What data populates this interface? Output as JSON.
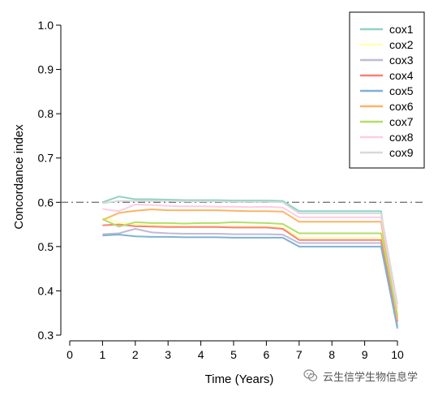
{
  "chart_data": {
    "type": "line",
    "xlabel": "Time (Years)",
    "ylabel": "Concordance index",
    "xlim": [
      0,
      10
    ],
    "ylim": [
      0.3,
      1.0
    ],
    "xticks": [
      0,
      1,
      2,
      3,
      4,
      5,
      6,
      7,
      8,
      9,
      10
    ],
    "yticks": [
      0.3,
      0.4,
      0.5,
      0.6,
      0.7,
      0.8,
      0.9,
      1.0
    ],
    "ytick_labels": [
      "0.3",
      "0.4",
      "0.5",
      "0.6",
      "0.7",
      "0.8",
      "0.9",
      "1.0"
    ],
    "reference_line": 0.6,
    "grid": false,
    "legend_position": "top-right",
    "x": [
      1,
      1.5,
      2,
      2.5,
      3,
      3.5,
      4,
      4.5,
      5,
      5.5,
      6,
      6.5,
      7,
      7.5,
      8,
      8.5,
      9,
      9.5,
      10
    ],
    "series": [
      {
        "name": "cox1",
        "color": "#8ED3C7",
        "values": [
          0.6,
          0.613,
          0.607,
          0.607,
          0.606,
          0.605,
          0.605,
          0.605,
          0.604,
          0.604,
          0.604,
          0.603,
          0.58,
          0.58,
          0.58,
          0.58,
          0.58,
          0.58,
          0.32
        ]
      },
      {
        "name": "cox2",
        "color": "#FFFFB3",
        "values": [
          0.565,
          0.555,
          0.55,
          0.548,
          0.547,
          0.546,
          0.546,
          0.546,
          0.545,
          0.545,
          0.545,
          0.544,
          0.52,
          0.52,
          0.52,
          0.52,
          0.52,
          0.52,
          0.35
        ]
      },
      {
        "name": "cox3",
        "color": "#BEBADA",
        "values": [
          0.528,
          0.53,
          0.54,
          0.532,
          0.53,
          0.529,
          0.529,
          0.529,
          0.528,
          0.528,
          0.528,
          0.527,
          0.508,
          0.508,
          0.508,
          0.508,
          0.508,
          0.508,
          0.34
        ]
      },
      {
        "name": "cox4",
        "color": "#FB8072",
        "values": [
          0.548,
          0.55,
          0.546,
          0.545,
          0.544,
          0.544,
          0.544,
          0.544,
          0.543,
          0.543,
          0.543,
          0.54,
          0.515,
          0.515,
          0.515,
          0.515,
          0.515,
          0.515,
          0.33
        ]
      },
      {
        "name": "cox5",
        "color": "#80B1D3",
        "values": [
          0.525,
          0.527,
          0.523,
          0.522,
          0.522,
          0.521,
          0.521,
          0.521,
          0.52,
          0.52,
          0.52,
          0.52,
          0.5,
          0.5,
          0.5,
          0.5,
          0.5,
          0.5,
          0.315
        ]
      },
      {
        "name": "cox6",
        "color": "#FDB462",
        "values": [
          0.56,
          0.576,
          0.581,
          0.584,
          0.582,
          0.582,
          0.582,
          0.582,
          0.581,
          0.58,
          0.58,
          0.579,
          0.556,
          0.556,
          0.556,
          0.556,
          0.556,
          0.556,
          0.335
        ]
      },
      {
        "name": "cox7",
        "color": "#B3DE69",
        "values": [
          0.562,
          0.545,
          0.555,
          0.553,
          0.553,
          0.552,
          0.553,
          0.553,
          0.555,
          0.554,
          0.553,
          0.551,
          0.53,
          0.53,
          0.53,
          0.53,
          0.53,
          0.53,
          0.345
        ]
      },
      {
        "name": "cox8",
        "color": "#FCCDE5",
        "values": [
          0.585,
          0.58,
          0.595,
          0.594,
          0.592,
          0.591,
          0.591,
          0.59,
          0.59,
          0.589,
          0.59,
          0.588,
          0.566,
          0.566,
          0.566,
          0.566,
          0.566,
          0.566,
          0.36
        ]
      },
      {
        "name": "cox9",
        "color": "#D9D9D9",
        "values": [
          0.598,
          0.603,
          0.603,
          0.603,
          0.603,
          0.602,
          0.602,
          0.602,
          0.601,
          0.601,
          0.601,
          0.6,
          0.575,
          0.575,
          0.575,
          0.575,
          0.575,
          0.575,
          0.37
        ]
      }
    ]
  },
  "watermark": {
    "icon": "wechat-icon",
    "text": "云生信学生物信息学"
  }
}
